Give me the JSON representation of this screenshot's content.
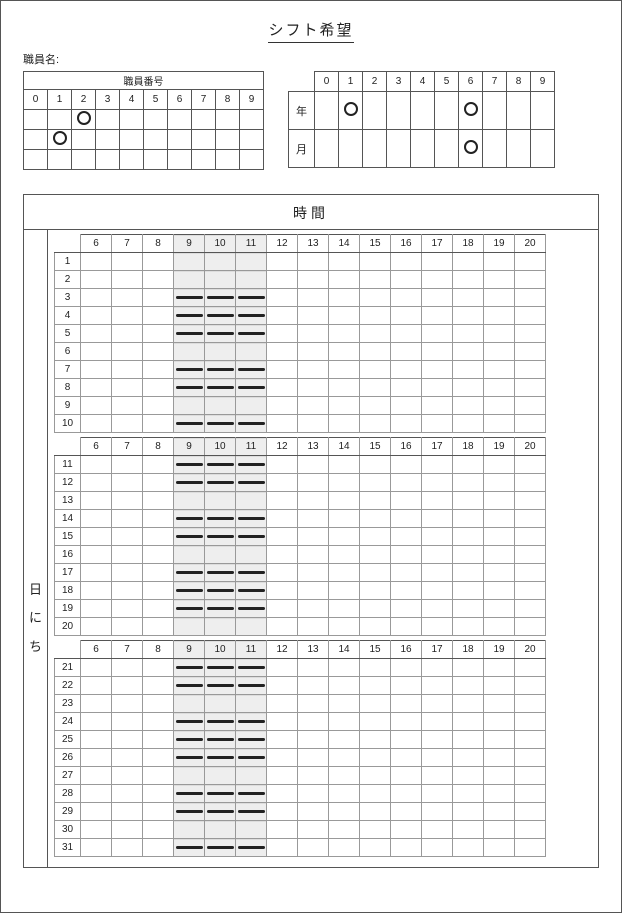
{
  "title": "シフト希望",
  "employee_name_label": "職員名:",
  "employee_number": {
    "header": "職員番号",
    "digits": [
      "0",
      "1",
      "2",
      "3",
      "4",
      "5",
      "6",
      "7",
      "8",
      "9"
    ],
    "marks": [
      {
        "row": 1,
        "col": 2
      },
      {
        "row": 2,
        "col": 1
      }
    ],
    "rows": 3
  },
  "year_month": {
    "digits": [
      "0",
      "1",
      "2",
      "3",
      "4",
      "5",
      "6",
      "7",
      "8",
      "9"
    ],
    "year_label": "年",
    "month_label": "月",
    "year_marks": [
      1,
      6
    ],
    "month_marks": [
      6
    ]
  },
  "schedule": {
    "time_header": "時間",
    "side_label": [
      "日",
      "に",
      "ち"
    ],
    "hours": [
      6,
      7,
      8,
      9,
      10,
      11,
      12,
      13,
      14,
      15,
      16,
      17,
      18,
      19,
      20
    ],
    "shaded_hours": [
      9,
      10,
      11
    ],
    "groups": [
      {
        "days": [
          1,
          2,
          3,
          4,
          5,
          6,
          7,
          8,
          9,
          10
        ]
      },
      {
        "days": [
          11,
          12,
          13,
          14,
          15,
          16,
          17,
          18,
          19,
          20
        ]
      },
      {
        "days": [
          21,
          22,
          23,
          24,
          25,
          26,
          27,
          28,
          29,
          30,
          31
        ]
      }
    ],
    "marked_days": [
      3,
      4,
      5,
      7,
      8,
      10,
      11,
      12,
      14,
      15,
      17,
      18,
      19,
      21,
      22,
      24,
      25,
      26,
      28,
      29,
      31
    ],
    "mark_hours": [
      9,
      10,
      11
    ]
  },
  "style": {
    "border_color": "#555",
    "grid_color": "#999",
    "mark_color": "#222",
    "circle_border": "#222",
    "background": "#ffffff"
  }
}
